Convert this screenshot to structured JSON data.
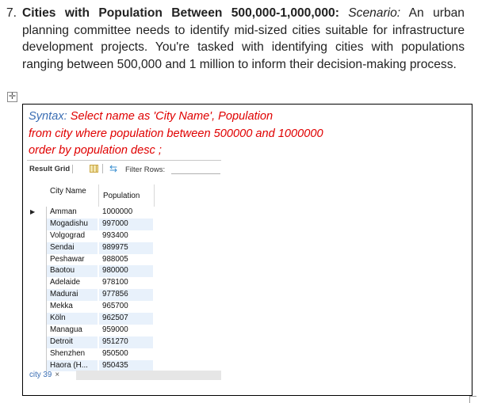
{
  "question": {
    "number": "7.",
    "title": "Cities with Population Between 500,000-1,000,000:",
    "scenario_label": "Scenario:",
    "scenario_text": "An urban planning committee needs to identify mid-sized cities suitable for infrastructure development projects. You're tasked with identifying cities with populations ranging between 500,000 and 1 million to inform their decision-making process."
  },
  "syntax": {
    "label": "Syntax:",
    "line1": "Select name as 'City Name', Population",
    "line2": "from city where population between 500000 and 1000000",
    "line3": "order by population desc ;"
  },
  "toolbar": {
    "result_grid": "Result Grid",
    "filter_rows": "Filter Rows:"
  },
  "grid": {
    "columns": [
      "City Name",
      "Population"
    ],
    "rows": [
      {
        "name": "Amman",
        "population": "1000000"
      },
      {
        "name": "Mogadishu",
        "population": "997000"
      },
      {
        "name": "Volgograd",
        "population": "993400"
      },
      {
        "name": "Sendai",
        "population": "989975"
      },
      {
        "name": "Peshawar",
        "population": "988005"
      },
      {
        "name": "Baotou",
        "population": "980000"
      },
      {
        "name": "Adelaide",
        "population": "978100"
      },
      {
        "name": "Madurai",
        "population": "977856"
      },
      {
        "name": "Mekka",
        "population": "965700"
      },
      {
        "name": "Köln",
        "population": "962507"
      },
      {
        "name": "Managua",
        "population": "959000"
      },
      {
        "name": "Detroit",
        "population": "951270"
      },
      {
        "name": "Shenzhen",
        "population": "950500"
      },
      {
        "name": "Haora (H...",
        "population": "950435"
      }
    ]
  },
  "status": {
    "tab_label": "city 39",
    "close_glyph": "×"
  },
  "icons": {
    "move_handle": "move-handle-icon",
    "row_indicator": "triangle-right-icon",
    "grid_view": "grid-icon",
    "filter": "filter-icon"
  }
}
